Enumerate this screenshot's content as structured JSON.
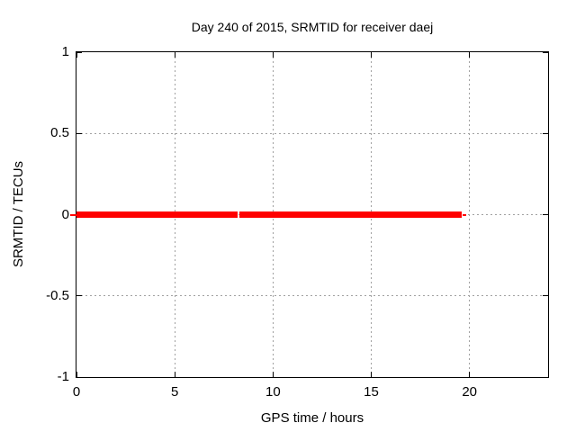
{
  "chart_data": {
    "type": "line",
    "title": "Day 240 of 2015, SRMTID for receiver daej",
    "xlabel": "GPS time / hours",
    "ylabel": "SRMTID / TECUs",
    "xlim": [
      0,
      24
    ],
    "ylim": [
      -1,
      1
    ],
    "xticks": [
      0,
      5,
      10,
      15,
      20
    ],
    "yticks": [
      -1,
      -0.5,
      0,
      0.5,
      1
    ],
    "grid": true,
    "grid_style": "dotted",
    "legend_position": "none",
    "background": "#ffffff",
    "border_color": "#000000",
    "grid_color": "#a0a0a0",
    "series": [
      {
        "name": "SRMTID",
        "color": "#ff0000",
        "y": 0,
        "segments": [
          {
            "x0": -0.34,
            "x1": 0,
            "lw": 2
          },
          {
            "x0": 0,
            "x1": 8.22,
            "lw": 7
          },
          {
            "x0": 8.31,
            "x1": 19.6,
            "lw": 7
          },
          {
            "x0": 19.65,
            "x1": 19.84,
            "lw": 2
          }
        ]
      }
    ]
  }
}
